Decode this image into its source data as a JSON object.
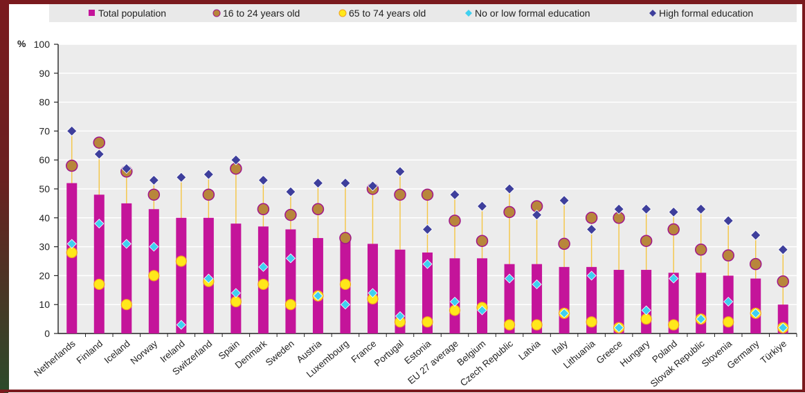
{
  "colors": {
    "total": "#c4149a",
    "age16_24": "#b8863b",
    "age16_24_stroke": "#a0148a",
    "age65_74": "#ffe81a",
    "age65_74_stroke": "#f0a020",
    "low_edu": "#3fd0f0",
    "high_edu": "#3e3f9c",
    "connector": "#f5c542",
    "legend_bg": "#e9e9e9",
    "axis": "#222222",
    "grid": "#ffffff",
    "plot_bg": "#ececec"
  },
  "chart_data": {
    "type": "bar",
    "title": "",
    "xlabel": "",
    "ylabel": "%",
    "ylim": [
      0,
      100
    ],
    "yticks": [
      "0",
      "10",
      "20",
      "30",
      "40",
      "50",
      "60",
      "70",
      "80",
      "90",
      "100"
    ],
    "legend_position": "top",
    "legend": [
      {
        "key": "total",
        "label": "Total population",
        "marker": "square"
      },
      {
        "key": "age16_24",
        "label": "16 to 24 years old",
        "marker": "circle"
      },
      {
        "key": "age65_74",
        "label": "65 to 74 years old",
        "marker": "circle"
      },
      {
        "key": "low_edu",
        "label": "No or low formal education",
        "marker": "diamond"
      },
      {
        "key": "high_edu",
        "label": "High formal education",
        "marker": "diamond"
      }
    ],
    "categories": [
      "Netherlands",
      "Finland",
      "Iceland",
      "Norway",
      "Ireland",
      "Switzerland",
      "Spain",
      "Denmark",
      "Sweden",
      "Austria",
      "Luxembourg",
      "France",
      "Portugal",
      "Estonia",
      "EU 27 average",
      "Belgium",
      "Czech Republic",
      "Latvia",
      "Italy",
      "Lithuania",
      "Greece",
      "Hungary",
      "Poland",
      "Slovak Republic",
      "Slovenia",
      "Germany",
      "Türkiye"
    ],
    "series": [
      {
        "name": "Total population",
        "key": "total",
        "values": [
          52,
          48,
          45,
          43,
          40,
          40,
          38,
          37,
          36,
          33,
          33,
          31,
          29,
          28,
          26,
          26,
          24,
          24,
          23,
          23,
          22,
          22,
          21,
          21,
          20,
          19,
          10
        ]
      },
      {
        "name": "16 to 24 years old",
        "key": "age16_24",
        "values": [
          58,
          66,
          56,
          48,
          null,
          48,
          57,
          43,
          41,
          43,
          33,
          50,
          48,
          48,
          39,
          32,
          42,
          44,
          31,
          40,
          40,
          32,
          36,
          29,
          27,
          24,
          18
        ]
      },
      {
        "name": "65 to 74 years old",
        "key": "age65_74",
        "values": [
          28,
          17,
          10,
          20,
          25,
          18,
          11,
          17,
          10,
          13,
          17,
          12,
          4,
          4,
          8,
          9,
          3,
          3,
          7,
          4,
          2,
          5,
          3,
          5,
          4,
          7,
          2
        ]
      },
      {
        "name": "No or low formal education",
        "key": "low_edu",
        "values": [
          31,
          38,
          31,
          30,
          3,
          19,
          14,
          23,
          26,
          13,
          10,
          14,
          6,
          24,
          11,
          8,
          19,
          17,
          7,
          20,
          2,
          8,
          19,
          5,
          11,
          7,
          2
        ]
      },
      {
        "name": "High formal education",
        "key": "high_edu",
        "values": [
          70,
          62,
          57,
          53,
          54,
          55,
          60,
          53,
          49,
          52,
          52,
          51,
          56,
          36,
          48,
          44,
          50,
          41,
          46,
          36,
          43,
          43,
          42,
          43,
          39,
          34,
          29
        ]
      }
    ]
  }
}
